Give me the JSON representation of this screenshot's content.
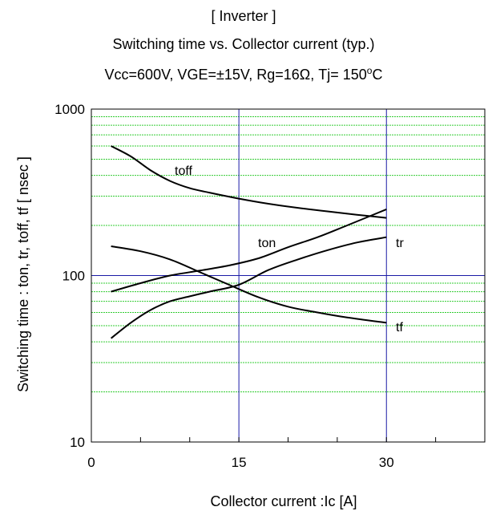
{
  "chart_data": {
    "type": "line",
    "title": "[ Inverter ]",
    "subtitle": "Switching time  vs.  Collector current  (typ.)",
    "conditions": {
      "prefix": "Vcc=600V,  VGE=±15V,  Rg=16Ω,  Tj= 150",
      "sup": "o",
      "suffix": "C"
    },
    "xlabel": "Collector   current :Ic [A]",
    "ylabel": "Switching time  :  ton, tr, toff, tf  [ nsec ]",
    "xlim": [
      0,
      40
    ],
    "ylim": [
      10,
      1000
    ],
    "y_scale": "log",
    "x_ticks": [
      0,
      15,
      30
    ],
    "x_tick_labels": [
      "0",
      "15",
      "30"
    ],
    "y_ticks": [
      10,
      100,
      1000
    ],
    "y_tick_labels": [
      "10",
      "100",
      "1000"
    ],
    "grid": "major lines blue at x=15, x=30 and y=100; minor horizontal lines green",
    "colors": {
      "major_grid": "#1a1aa6",
      "minor_grid": "#33cc33",
      "curve": "#000000"
    },
    "series": [
      {
        "name": "toff",
        "x": [
          2,
          4,
          6,
          8,
          10,
          12,
          15,
          18,
          21,
          24,
          27,
          30
        ],
        "y": [
          600,
          520,
          430,
          370,
          335,
          315,
          290,
          270,
          255,
          243,
          232,
          222
        ]
      },
      {
        "name": "ton",
        "x": [
          2,
          5,
          8,
          11,
          14,
          17,
          20,
          23,
          26,
          30
        ],
        "y": [
          80,
          90,
          100,
          107,
          115,
          127,
          148,
          170,
          200,
          250
        ]
      },
      {
        "name": "tr",
        "x": [
          2,
          4,
          6,
          8,
          10,
          12,
          15,
          18,
          21,
          24,
          27,
          30
        ],
        "y": [
          42,
          52,
          62,
          70,
          75,
          80,
          88,
          108,
          125,
          142,
          158,
          170
        ]
      },
      {
        "name": "tf",
        "x": [
          2,
          5,
          8,
          11,
          14,
          17,
          20,
          23,
          26,
          30
        ],
        "y": [
          150,
          140,
          125,
          105,
          88,
          74,
          65,
          60,
          56,
          52
        ]
      }
    ],
    "series_labels": [
      "toff",
      "ton",
      "tr",
      "tf"
    ]
  }
}
